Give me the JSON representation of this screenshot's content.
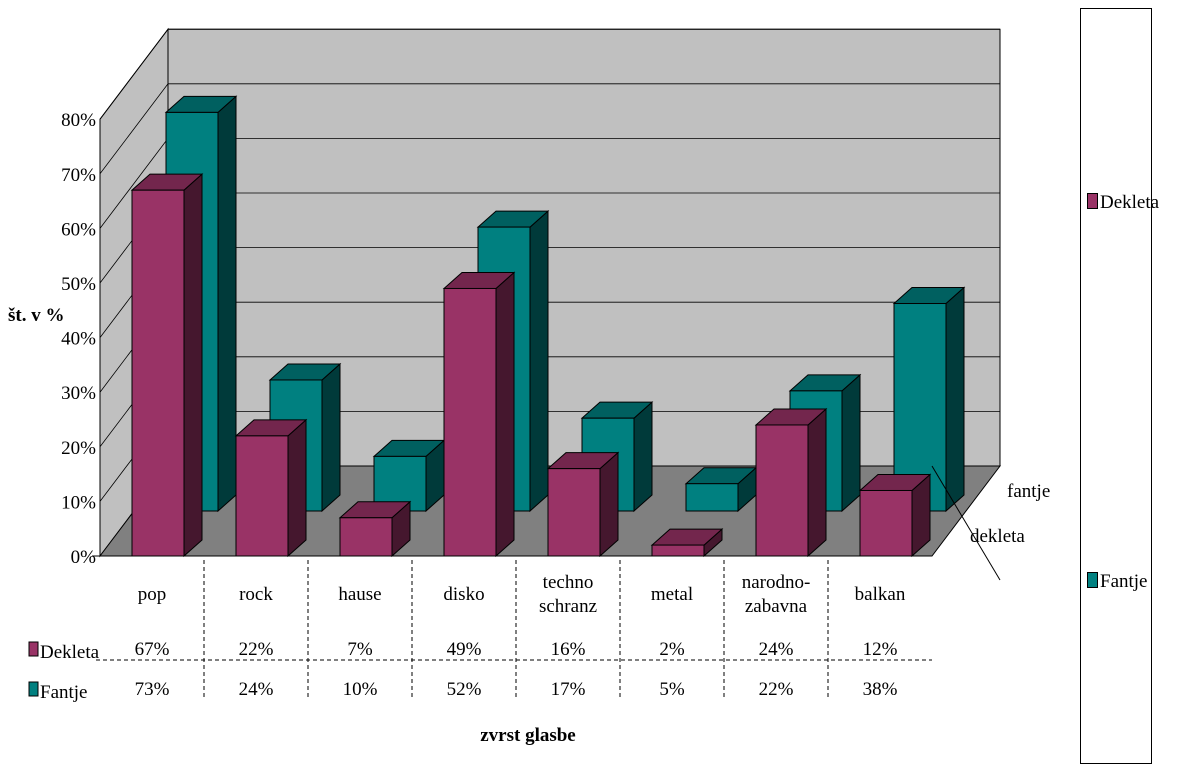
{
  "chart_data": {
    "type": "bar",
    "categories": [
      "pop",
      "rock",
      "hause",
      "disko",
      "techno schranz",
      "metal",
      "narodno-zabavna",
      "balkan"
    ],
    "category_lines": [
      [
        "pop"
      ],
      [
        "rock"
      ],
      [
        "hause"
      ],
      [
        "disko"
      ],
      [
        "techno",
        "schranz"
      ],
      [
        "metal"
      ],
      [
        "narodno-",
        "zabavna"
      ],
      [
        "balkan"
      ]
    ],
    "series": [
      {
        "name": "Dekleta",
        "values": [
          67,
          22,
          7,
          49,
          16,
          2,
          24,
          12
        ],
        "labels": [
          "67%",
          "22%",
          "7%",
          "49%",
          "16%",
          "2%",
          "24%",
          "12%"
        ]
      },
      {
        "name": "Fantje",
        "values": [
          73,
          24,
          10,
          52,
          17,
          5,
          22,
          38
        ],
        "labels": [
          "73%",
          "24%",
          "10%",
          "52%",
          "17%",
          "5%",
          "22%",
          "38%"
        ]
      }
    ],
    "depth_labels": [
      "fantje",
      "dekleta"
    ],
    "ylabel": "št. v %",
    "xlabel": "zvrst glasbe",
    "yticks": [
      "0%",
      "10%",
      "20%",
      "30%",
      "40%",
      "50%",
      "60%",
      "70%",
      "80%"
    ],
    "ylim": [
      0,
      80
    ],
    "grid": true,
    "legend": "right",
    "style": "3d-clustered-column",
    "colors": {
      "Dekleta": "#993366",
      "Fantje": "#008080",
      "wall": "#c0c0c0",
      "floor": "#808080"
    }
  }
}
